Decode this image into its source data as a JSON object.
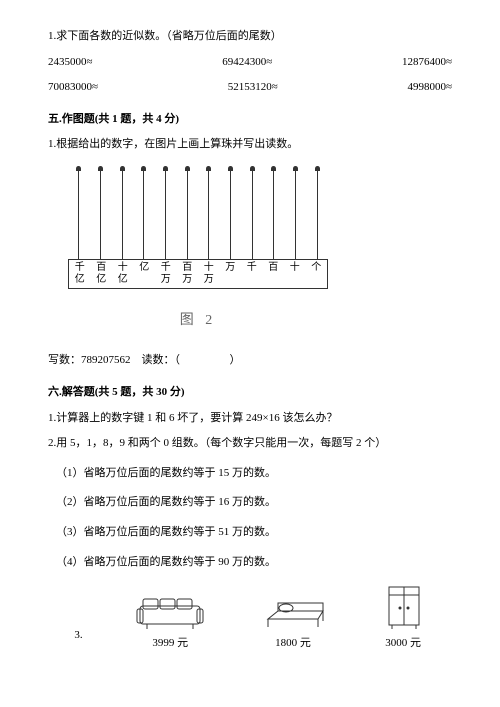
{
  "q1": {
    "prompt": "1.求下面各数的近似数。（省略万位后面的尾数）",
    "row1": [
      "2435000≈",
      "69424300≈",
      "12876400≈"
    ],
    "row2": [
      "70083000≈",
      "52153120≈",
      "4998000≈"
    ]
  },
  "section5": {
    "title": "五.作图题(共 1 题，共 4 分)",
    "prompt": "1.根据给出的数字，在图片上画上算珠并写出读数。",
    "labels": [
      "千亿",
      "百亿",
      "十亿",
      "亿",
      "千万",
      "百万",
      "十万",
      "万",
      "千",
      "百",
      "十",
      "个"
    ],
    "caption": "图 2",
    "write_label": "写数：",
    "write_value": "789207562",
    "read_label": "读数：（",
    "read_close": "）"
  },
  "section6": {
    "title": "六.解答题(共 5 题，共 30 分)",
    "q1": "1.计算器上的数字键 1 和 6 坏了，要计算 249×16 该怎么办？",
    "q2": "2.用 5，1，8，9 和两个 0 组数。（每个数字只能用一次，每题写 2 个）",
    "sub1": "（1）省略万位后面的尾数约等于 15 万的数。",
    "sub2": "（2）省略万位后面的尾数约等于 16 万的数。",
    "sub3": "（3）省略万位后面的尾数约等于 51 万的数。",
    "sub4": "（4）省略万位后面的尾数约等于 90 万的数。",
    "q3_label": "3.",
    "furniture": [
      {
        "name": "sofa",
        "price": "3999 元"
      },
      {
        "name": "bed",
        "price": "1800 元"
      },
      {
        "name": "wardrobe",
        "price": "3000 元"
      }
    ]
  }
}
